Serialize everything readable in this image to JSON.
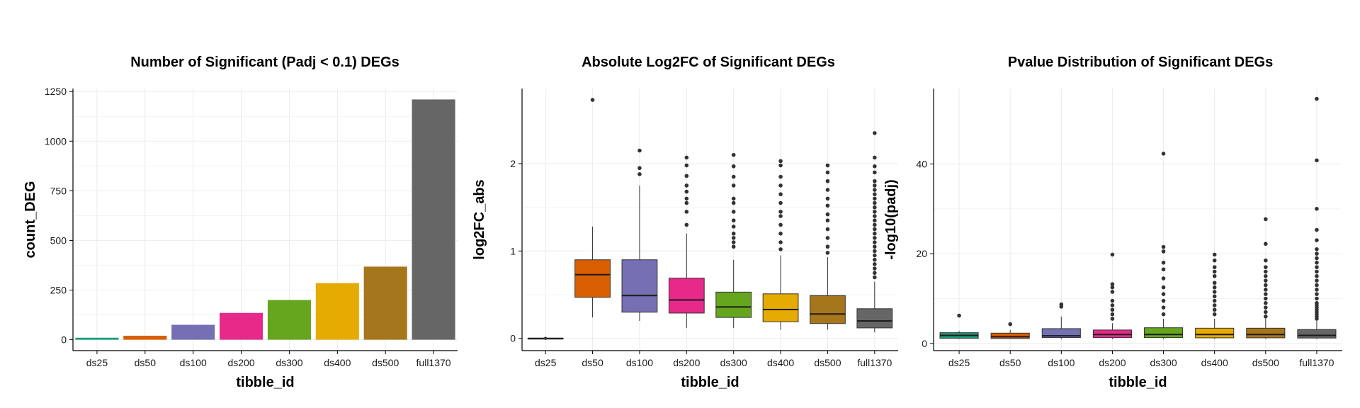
{
  "colors": {
    "ds25": "#1b9e77",
    "ds50": "#d95f02",
    "ds100": "#7570b3",
    "ds200": "#e7298a",
    "ds300": "#66a61e",
    "ds400": "#e6ab02",
    "ds500": "#a6761d",
    "full1370": "#666666"
  },
  "chart_data": [
    {
      "type": "bar",
      "title": "Number of Significant (Padj < 0.1) DEGs",
      "xlabel": "tibble_id",
      "ylabel": "count_DEG",
      "categories": [
        "ds25",
        "ds50",
        "ds100",
        "ds200",
        "ds300",
        "ds400",
        "ds500",
        "full1370"
      ],
      "values": [
        10,
        20,
        75,
        135,
        200,
        285,
        368,
        1210
      ],
      "ylim": [
        -55,
        1265
      ],
      "yticks": [
        0,
        250,
        500,
        750,
        1000,
        1250
      ],
      "ytick_labels": [
        "0",
        "250",
        "500",
        "750",
        "1000",
        "1250"
      ]
    },
    {
      "type": "box",
      "title": "Absolute Log2FC of Significant DEGs",
      "xlabel": "tibble_id",
      "ylabel": "log2FC_abs",
      "categories": [
        "ds25",
        "ds50",
        "ds100",
        "ds200",
        "ds300",
        "ds400",
        "ds500",
        "full1370"
      ],
      "ylim": [
        -0.14,
        2.86
      ],
      "yticks": [
        0,
        1,
        2
      ],
      "ytick_labels": [
        "0",
        "1",
        "2"
      ],
      "boxes": [
        {
          "low": 0.0,
          "q1": 0.0,
          "median": 0.0,
          "q3": 0.0,
          "high": 0.0,
          "outliers": []
        },
        {
          "low": 0.24,
          "q1": 0.47,
          "median": 0.73,
          "q3": 0.9,
          "high": 1.28,
          "outliers": [
            2.73
          ]
        },
        {
          "low": 0.2,
          "q1": 0.3,
          "median": 0.49,
          "q3": 0.9,
          "high": 1.75,
          "outliers": [
            1.88,
            1.95,
            2.15
          ]
        },
        {
          "low": 0.12,
          "q1": 0.29,
          "median": 0.44,
          "q3": 0.69,
          "high": 1.2,
          "outliers": [
            1.3,
            1.45,
            1.55,
            1.6,
            1.68,
            1.75,
            1.86,
            1.98,
            2.07
          ]
        },
        {
          "low": 0.12,
          "q1": 0.24,
          "median": 0.36,
          "q3": 0.53,
          "high": 0.9,
          "outliers": [
            1.05,
            1.1,
            1.15,
            1.2,
            1.28,
            1.35,
            1.45,
            1.55,
            1.6,
            1.75,
            1.85,
            1.97,
            2.1
          ]
        },
        {
          "low": 0.1,
          "q1": 0.19,
          "median": 0.33,
          "q3": 0.51,
          "high": 0.95,
          "outliers": [
            1.02,
            1.1,
            1.2,
            1.3,
            1.4,
            1.45,
            1.55,
            1.65,
            1.75,
            1.85,
            1.98,
            2.03
          ]
        },
        {
          "low": 0.1,
          "q1": 0.17,
          "median": 0.28,
          "q3": 0.49,
          "high": 0.93,
          "outliers": [
            0.98,
            1.05,
            1.15,
            1.25,
            1.35,
            1.42,
            1.52,
            1.6,
            1.7,
            1.8,
            1.9,
            1.98
          ]
        },
        {
          "low": 0.07,
          "q1": 0.12,
          "median": 0.2,
          "q3": 0.34,
          "high": 0.65,
          "outliers": [
            0.7,
            0.75,
            0.8,
            0.85,
            0.9,
            0.95,
            1.0,
            1.05,
            1.1,
            1.15,
            1.2,
            1.25,
            1.3,
            1.35,
            1.4,
            1.45,
            1.5,
            1.55,
            1.6,
            1.65,
            1.7,
            1.75,
            1.8,
            1.9,
            1.97,
            2.07,
            2.35
          ]
        }
      ]
    },
    {
      "type": "box",
      "title": "Pvalue Distribution of Significant DEGs",
      "xlabel": "tibble_id",
      "ylabel": "-log10(padj)",
      "categories": [
        "ds25",
        "ds50",
        "ds100",
        "ds200",
        "ds300",
        "ds400",
        "ds500",
        "full1370"
      ],
      "ylim": [
        -1.6,
        56.8
      ],
      "yticks": [
        0,
        20,
        40
      ],
      "ytick_labels": [
        "0",
        "20",
        "40"
      ],
      "boxes": [
        {
          "low": 1.0,
          "q1": 1.15,
          "median": 1.8,
          "q3": 2.4,
          "high": 2.8,
          "outliers": [
            6.2
          ]
        },
        {
          "low": 1.0,
          "q1": 1.1,
          "median": 1.5,
          "q3": 2.3,
          "high": 3.0,
          "outliers": [
            4.3
          ]
        },
        {
          "low": 1.0,
          "q1": 1.3,
          "median": 1.7,
          "q3": 3.3,
          "high": 6.0,
          "outliers": [
            8.2,
            8.7
          ]
        },
        {
          "low": 1.0,
          "q1": 1.3,
          "median": 2.0,
          "q3": 3.0,
          "high": 4.5,
          "outliers": [
            5.5,
            6.5,
            7.5,
            8.5,
            9.5,
            11.5,
            12.5,
            13.2,
            19.8
          ]
        },
        {
          "low": 1.0,
          "q1": 1.3,
          "median": 2.0,
          "q3": 3.5,
          "high": 5.5,
          "outliers": [
            6.5,
            8.0,
            9.5,
            11.0,
            12.5,
            14.5,
            16.5,
            18.0,
            20.5,
            21.5,
            42.3
          ]
        },
        {
          "low": 1.0,
          "q1": 1.25,
          "median": 2.0,
          "q3": 3.4,
          "high": 5.5,
          "outliers": [
            6.5,
            7.5,
            8.5,
            9.5,
            10.5,
            11.5,
            12.5,
            13.5,
            15.0,
            16.0,
            17.0,
            18.5,
            19.8
          ]
        },
        {
          "low": 1.0,
          "q1": 1.25,
          "median": 2.0,
          "q3": 3.4,
          "high": 5.5,
          "outliers": [
            6.0,
            7.0,
            8.0,
            9.0,
            10.0,
            11.0,
            12.0,
            13.0,
            14.0,
            15.0,
            16.0,
            17.0,
            18.5,
            22.2,
            27.7
          ]
        },
        {
          "low": 1.0,
          "q1": 1.2,
          "median": 1.8,
          "q3": 3.1,
          "high": 5.0,
          "outliers": [
            5.5,
            6.0,
            6.5,
            7.0,
            7.5,
            8.0,
            8.5,
            9.0,
            10.0,
            11.0,
            12.0,
            13.0,
            14.0,
            15.0,
            16.0,
            17.0,
            18.0,
            19.0,
            20.0,
            21.0,
            23.0,
            25.3,
            30.0,
            40.8,
            54.5
          ]
        }
      ]
    }
  ]
}
